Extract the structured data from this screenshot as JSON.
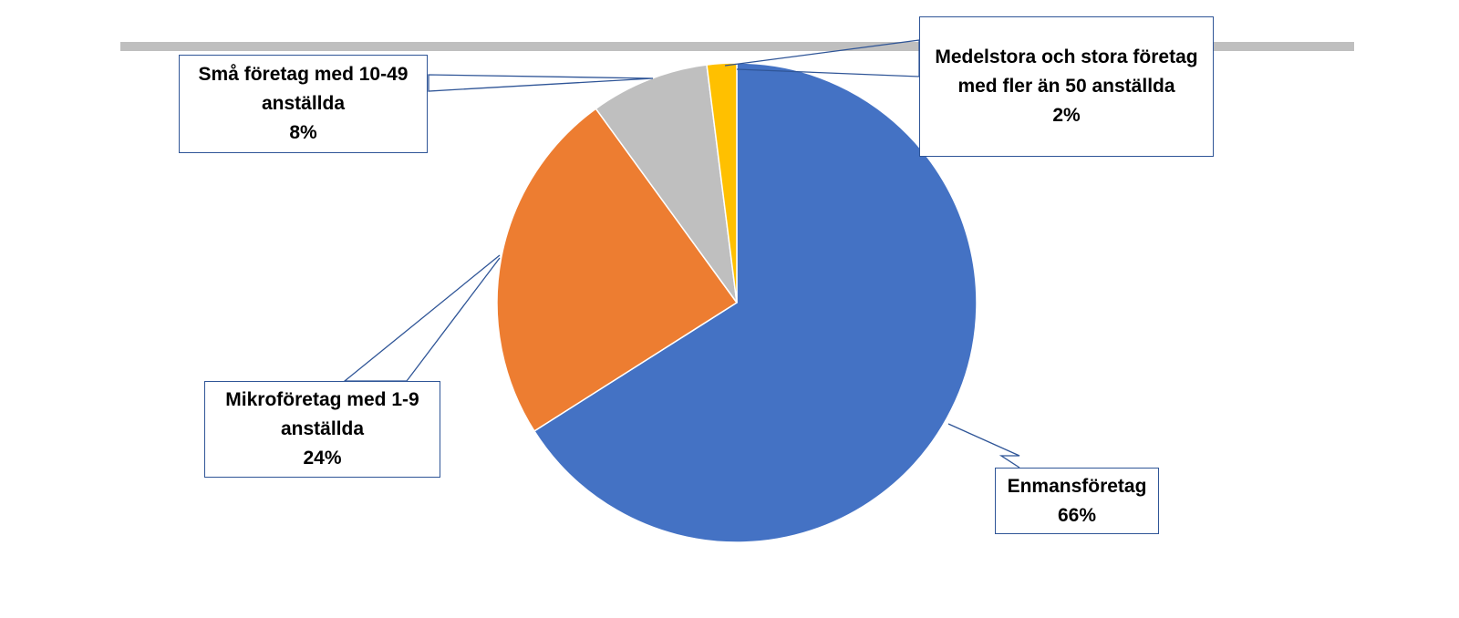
{
  "chart_data": {
    "type": "pie",
    "categories": [
      "Enmansföretag",
      "Mikroföretag med 1-9 anställda",
      "Små företag med 10-49 anställda",
      "Medelstora och stora företag med fler än 50 anställda"
    ],
    "values": [
      66,
      24,
      8,
      2
    ],
    "value_labels": [
      "66%",
      "24%",
      "8%",
      "2%"
    ],
    "colors": [
      "#4472c4",
      "#ed7d31",
      "#bfbfbf",
      "#ffc000"
    ]
  }
}
